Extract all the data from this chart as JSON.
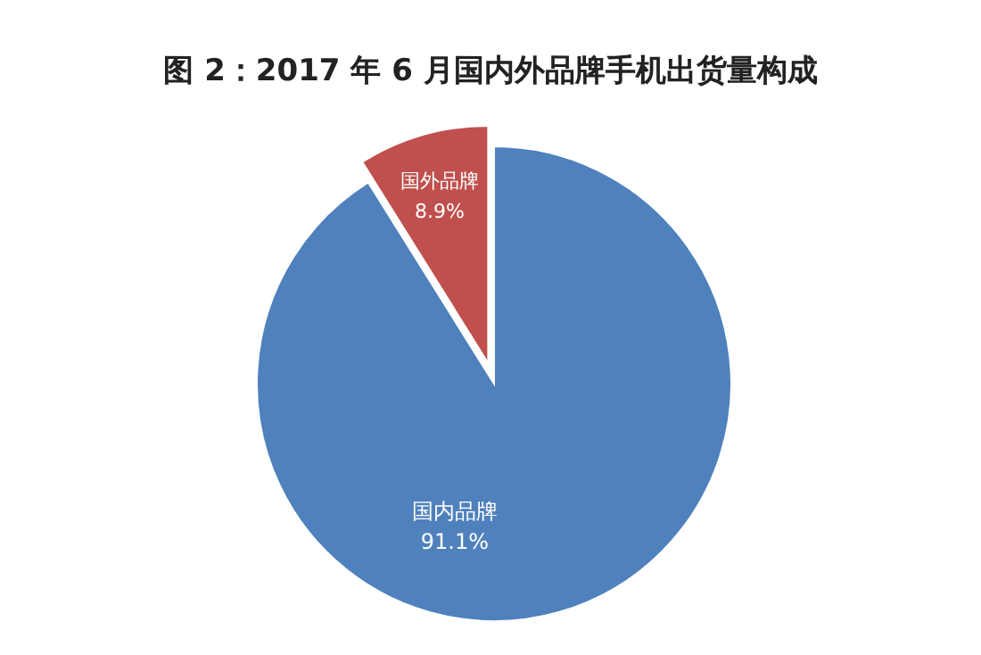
{
  "chart_data": {
    "type": "pie",
    "title": "图 2：2017 年 6 月国内外品牌手机出货量构成",
    "categories": [
      "国内品牌",
      "国外品牌"
    ],
    "values": [
      91.1,
      8.9
    ],
    "colors": [
      "#4f81bd",
      "#c0504d"
    ],
    "value_labels": [
      "91.1%",
      "8.9%"
    ]
  }
}
